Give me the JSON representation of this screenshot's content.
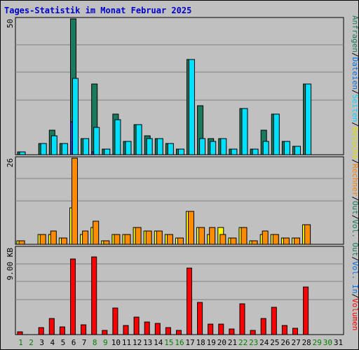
{
  "title": "Tages-Statistik im Monat Februar 2025",
  "chart_data": [
    {
      "type": "bar",
      "panel": "top",
      "ymax_label": "50",
      "ylim": [
        0,
        50
      ],
      "grid": true,
      "categories": [
        "1",
        "2",
        "3",
        "4",
        "5",
        "6",
        "7",
        "8",
        "9",
        "10",
        "11",
        "12",
        "13",
        "14",
        "15",
        "16",
        "17",
        "18",
        "19",
        "20",
        "21",
        "22",
        "23",
        "24",
        "25",
        "26",
        "27",
        "28",
        "29",
        "30",
        "31"
      ],
      "series": [
        {
          "name": "Anfragen",
          "color": "#1a7a5e",
          "values": [
            1,
            0,
            4,
            9,
            4,
            50,
            6,
            26,
            2,
            15,
            5,
            11,
            7,
            6,
            4,
            2,
            35,
            18,
            6,
            6,
            2,
            17,
            2,
            9,
            15,
            5,
            3,
            26,
            null,
            null,
            null
          ]
        },
        {
          "name": "Dateien",
          "color": "#00e0ff",
          "values": [
            1,
            0,
            4,
            7,
            4,
            28,
            6,
            10,
            2,
            13,
            5,
            11,
            6,
            6,
            4,
            2,
            35,
            6,
            5,
            6,
            2,
            17,
            2,
            5,
            15,
            5,
            3,
            26,
            null,
            null,
            null
          ]
        },
        {
          "name": "Seiten",
          "color": "#1040d0",
          "values": [
            0,
            0,
            0,
            0,
            0,
            12,
            0,
            1,
            0,
            0,
            0,
            0,
            0,
            0,
            0,
            0,
            0,
            0,
            0,
            0,
            0,
            0,
            0,
            0,
            0,
            0,
            0,
            0,
            null,
            null,
            null
          ]
        }
      ]
    },
    {
      "type": "bar",
      "panel": "middle",
      "ymax_label": "26",
      "ylim": [
        0,
        26
      ],
      "grid": true,
      "categories": [
        "1",
        "2",
        "3",
        "4",
        "5",
        "6",
        "7",
        "8",
        "9",
        "10",
        "11",
        "12",
        "13",
        "14",
        "15",
        "16",
        "17",
        "18",
        "19",
        "20",
        "21",
        "22",
        "23",
        "24",
        "25",
        "26",
        "27",
        "28",
        "29",
        "30",
        "31"
      ],
      "series": [
        {
          "name": "Besuche",
          "color": "#ffff00",
          "values": [
            1,
            0,
            3,
            3,
            2,
            11,
            3,
            5,
            1,
            3,
            3,
            5,
            4,
            4,
            3,
            2,
            10,
            5,
            3,
            5,
            2,
            5,
            1,
            3,
            3,
            2,
            2,
            6,
            null,
            null,
            null
          ]
        },
        {
          "name": "Rechner",
          "color": "#ff8c00",
          "values": [
            1,
            0,
            3,
            4,
            2,
            26,
            4,
            7,
            1,
            3,
            3,
            5,
            4,
            4,
            3,
            2,
            10,
            5,
            5,
            3,
            2,
            5,
            1,
            4,
            3,
            2,
            2,
            6,
            null,
            null,
            null
          ]
        }
      ]
    },
    {
      "type": "bar",
      "panel": "bottom",
      "ymax_label": "9.00 KB",
      "ylim": [
        0,
        9.8
      ],
      "grid": true,
      "categories": [
        "1",
        "2",
        "3",
        "4",
        "5",
        "6",
        "7",
        "8",
        "9",
        "10",
        "11",
        "12",
        "13",
        "14",
        "15",
        "16",
        "17",
        "18",
        "19",
        "20",
        "21",
        "22",
        "23",
        "24",
        "25",
        "26",
        "27",
        "28",
        "29",
        "30",
        "31"
      ],
      "series": [
        {
          "name": "Volumen",
          "color": "#ff0000",
          "values": [
            0.3,
            0,
            0.8,
            1.8,
            0.9,
            8.5,
            1.1,
            8.8,
            0.5,
            3.0,
            1.0,
            2.0,
            1.4,
            1.3,
            0.8,
            0.5,
            7.5,
            3.6,
            1.2,
            1.2,
            0.6,
            3.5,
            0.5,
            1.8,
            3.1,
            1.0,
            0.7,
            5.4,
            null,
            null,
            null
          ]
        }
      ]
    }
  ],
  "legend_right": [
    {
      "text": "Anfragen",
      "color": "#1a7a5e"
    },
    {
      "text": "/",
      "color": "#000000"
    },
    {
      "text": "Dateien",
      "color": "#0070e0"
    },
    {
      "text": "/",
      "color": "#000000"
    },
    {
      "text": "Seiten",
      "color": "#00d8ff"
    },
    {
      "text": "/",
      "color": "#000000"
    },
    {
      "text": "Besuche",
      "color": "#e0e000"
    },
    {
      "text": "/",
      "color": "#000000"
    },
    {
      "text": "Rechner",
      "color": "#ff8000"
    },
    {
      "text": "/",
      "color": "#000000"
    },
    {
      "text": "Out",
      "color": "#1a7a5e"
    },
    {
      "text": "/",
      "color": "#000000"
    },
    {
      "text": "Vol.",
      "color": "#1a7a5e"
    },
    {
      "text": "Out",
      "color": "#1a7a5e"
    },
    {
      "text": "/",
      "color": "#000000"
    },
    {
      "text": "Vol.",
      "color": "#0070e0"
    },
    {
      "text": "In",
      "color": "#0070e0"
    },
    {
      "text": "/",
      "color": "#000000"
    },
    {
      "text": "Volumen",
      "color": "#ff0000"
    }
  ],
  "weekend_days": [
    "1",
    "2",
    "8",
    "9",
    "15",
    "16",
    "22",
    "23",
    "29",
    "30"
  ],
  "colors": {
    "weekday_label": "#000000",
    "weekend_label": "#008000",
    "grid": "#808080",
    "background": "#c0c0c0"
  }
}
